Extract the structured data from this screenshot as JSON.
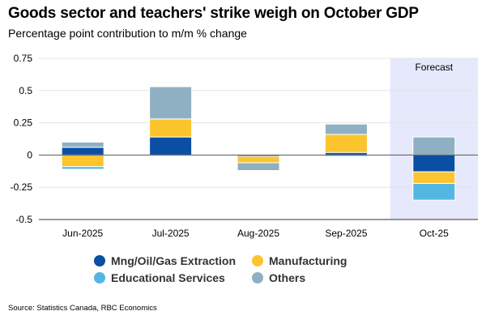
{
  "chart_data": {
    "type": "bar",
    "stacked": true,
    "title": "Goods sector and teachers' strike weigh on October GDP",
    "subtitle": "Percentage point contribution to m/m % change",
    "categories": [
      "Jun-2025",
      "Jul-2025",
      "Aug-2025",
      "Sep-2025",
      "Oct-25"
    ],
    "ylim": [
      -0.5,
      0.75
    ],
    "yticks": [
      -0.5,
      -0.25,
      0,
      0.25,
      0.5,
      0.75
    ],
    "ytick_labels": [
      "-0.5",
      "-0.25",
      "0",
      "0.25",
      "0.5",
      "0.75"
    ],
    "grid": true,
    "legend_position": "bottom",
    "series": [
      {
        "name": "Mng/Oil/Gas Extraction",
        "color": "#0a4fa3",
        "values": [
          0.06,
          0.14,
          -0.01,
          0.02,
          -0.13
        ]
      },
      {
        "name": "Manufacturing",
        "color": "#fcc42d",
        "values": [
          -0.09,
          0.14,
          -0.05,
          0.14,
          -0.09
        ]
      },
      {
        "name": "Educational Services",
        "color": "#54b6e2",
        "values": [
          -0.02,
          0.0,
          0.0,
          -0.01,
          -0.13
        ]
      },
      {
        "name": "Others",
        "color": "#8fb0c2",
        "values": [
          0.04,
          0.25,
          -0.06,
          0.08,
          0.14
        ]
      }
    ],
    "forecast_band": {
      "category": "Oct-25",
      "label": "Forecast",
      "color": "#e6e8fc"
    }
  },
  "source": "Source: Statistics Canada, RBC Economics"
}
